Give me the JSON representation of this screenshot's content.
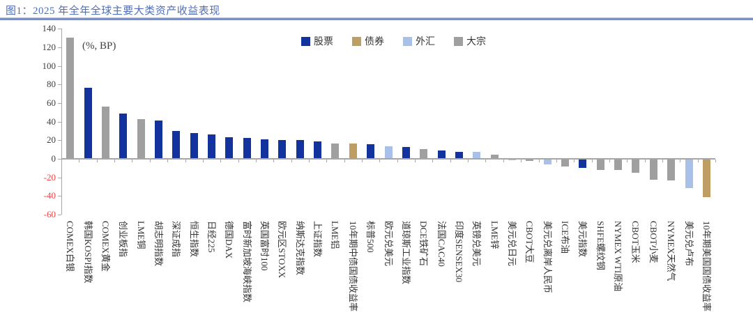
{
  "header": {
    "title": "图1：2025 年全年全球主要大类资产收益表现"
  },
  "colors": {
    "title": "#4f6db8",
    "divider": "#7d8fc4",
    "axis": "#a6a6a6",
    "tick_label": "#404040",
    "negative_tick_label": "#f54040"
  },
  "chart_data": {
    "type": "bar",
    "unit_label": "(%, BP)",
    "ylim": [
      -60,
      140
    ],
    "ytick_interval": 20,
    "grid": false,
    "legend_position": "top-center",
    "legend": [
      {
        "label": "股票",
        "color_key": "blue"
      },
      {
        "label": "债券",
        "color_key": "tan"
      },
      {
        "label": "外汇",
        "color_key": "lightblue"
      },
      {
        "label": "大宗",
        "color_key": "gray"
      }
    ],
    "palette": {
      "blue": "#12339e",
      "tan": "#bf9e64",
      "lightblue": "#a9c0e8",
      "gray": "#9f9f9f"
    },
    "bars": [
      {
        "label": "COMEX白银",
        "value": 130.5,
        "color_key": "gray"
      },
      {
        "label": "韩国KOSPI指数",
        "value": 76.5,
        "color_key": "blue"
      },
      {
        "label": "COMEX黄金",
        "value": 56,
        "color_key": "gray"
      },
      {
        "label": "创业板指",
        "value": 49,
        "color_key": "blue"
      },
      {
        "label": "LME铜",
        "value": 42.5,
        "color_key": "gray"
      },
      {
        "label": "胡志明指数",
        "value": 41,
        "color_key": "blue"
      },
      {
        "label": "深证成指",
        "value": 30,
        "color_key": "blue"
      },
      {
        "label": "恒生指数",
        "value": 27.5,
        "color_key": "blue"
      },
      {
        "label": "日经225",
        "value": 26,
        "color_key": "blue"
      },
      {
        "label": "德国DAX",
        "value": 23,
        "color_key": "blue"
      },
      {
        "label": "富时新加坡海峡指数",
        "value": 22.5,
        "color_key": "blue"
      },
      {
        "label": "英国富时100",
        "value": 21,
        "color_key": "blue"
      },
      {
        "label": "欧元区STOXX",
        "value": 20.5,
        "color_key": "blue"
      },
      {
        "label": "纳斯达克指数",
        "value": 20,
        "color_key": "blue"
      },
      {
        "label": "上证指数",
        "value": 18.5,
        "color_key": "blue"
      },
      {
        "label": "LME铝",
        "value": 16.5,
        "color_key": "gray"
      },
      {
        "label": "10年期中债国债收益率",
        "value": 16.3,
        "color_key": "tan"
      },
      {
        "label": "标普500",
        "value": 15.7,
        "color_key": "blue"
      },
      {
        "label": "欧元兑美元",
        "value": 13.2,
        "color_key": "lightblue"
      },
      {
        "label": "道琼斯工业指数",
        "value": 12.5,
        "color_key": "blue"
      },
      {
        "label": "DCE铁矿石",
        "value": 10.3,
        "color_key": "gray"
      },
      {
        "label": "法国CAC40",
        "value": 9,
        "color_key": "blue"
      },
      {
        "label": "印度SENSEX30",
        "value": 7.6,
        "color_key": "blue"
      },
      {
        "label": "英镑兑美元",
        "value": 7.2,
        "color_key": "lightblue"
      },
      {
        "label": "LME锌",
        "value": 4.8,
        "color_key": "gray"
      },
      {
        "label": "美元兑日元",
        "value": -0.4,
        "color_key": "lightblue"
      },
      {
        "label": "CBOT大豆",
        "value": -1.5,
        "color_key": "gray"
      },
      {
        "label": "美元兑离岸人民币",
        "value": -5,
        "color_key": "lightblue"
      },
      {
        "label": "ICE布油",
        "value": -7.6,
        "color_key": "gray"
      },
      {
        "label": "美元指数",
        "value": -8.8,
        "color_key": "blue"
      },
      {
        "label": "SHFE螺纹钢",
        "value": -11.5,
        "color_key": "gray"
      },
      {
        "label": "NYMEX WTI原油",
        "value": -11.2,
        "color_key": "gray"
      },
      {
        "label": "CBOT玉米",
        "value": -14,
        "color_key": "gray"
      },
      {
        "label": "CBOT小麦",
        "value": -21.5,
        "color_key": "gray"
      },
      {
        "label": "NYMEX天然气",
        "value": -22.8,
        "color_key": "gray"
      },
      {
        "label": "美元兑卢布",
        "value": -31,
        "color_key": "lightblue"
      },
      {
        "label": "10年期美国国债收益率",
        "value": -40.5,
        "color_key": "tan"
      }
    ]
  }
}
